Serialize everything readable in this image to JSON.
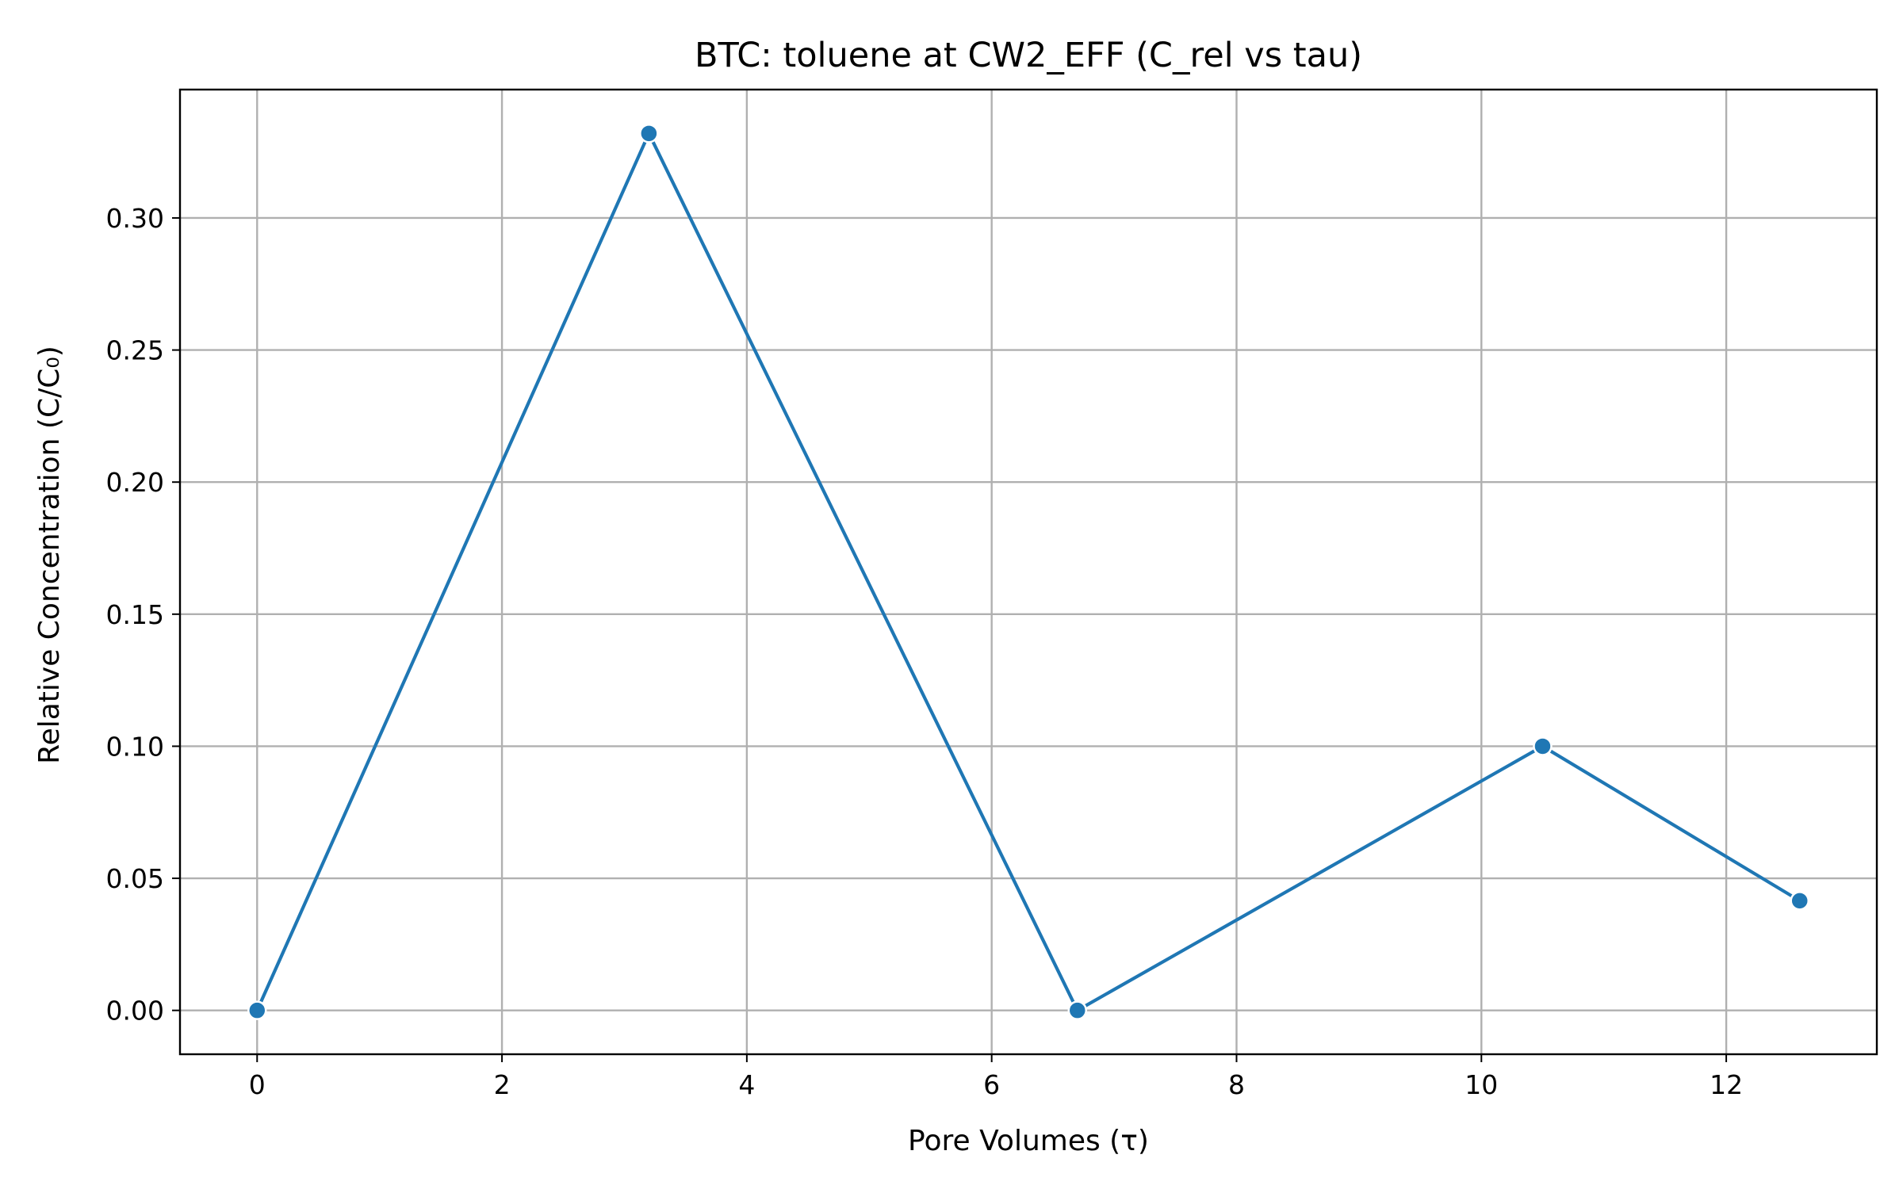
{
  "chart_data": {
    "type": "line",
    "title": "BTC: toluene at CW2_EFF (C_rel vs tau)",
    "xlabel": "Pore Volumes (τ)",
    "ylabel": "Relative Concentration (C/C₀)",
    "xlim": [
      -0.63,
      13.23
    ],
    "ylim": [
      -0.0166,
      0.3486
    ],
    "x_ticks": [
      0,
      2,
      4,
      6,
      8,
      10,
      12
    ],
    "x_tick_labels": [
      "0",
      "2",
      "4",
      "6",
      "8",
      "10",
      "12"
    ],
    "y_ticks": [
      0.0,
      0.05,
      0.1,
      0.15,
      0.2,
      0.25,
      0.3
    ],
    "y_tick_labels": [
      "0.00",
      "0.05",
      "0.10",
      "0.15",
      "0.20",
      "0.25",
      "0.30"
    ],
    "grid": true,
    "legend": false,
    "series": [
      {
        "x": [
          0,
          3.2,
          6.7,
          10.5,
          12.6
        ],
        "y": [
          0.0,
          0.332,
          0.0,
          0.1,
          0.0415
        ],
        "color": "#1f77b4",
        "marker": "circle"
      }
    ]
  }
}
